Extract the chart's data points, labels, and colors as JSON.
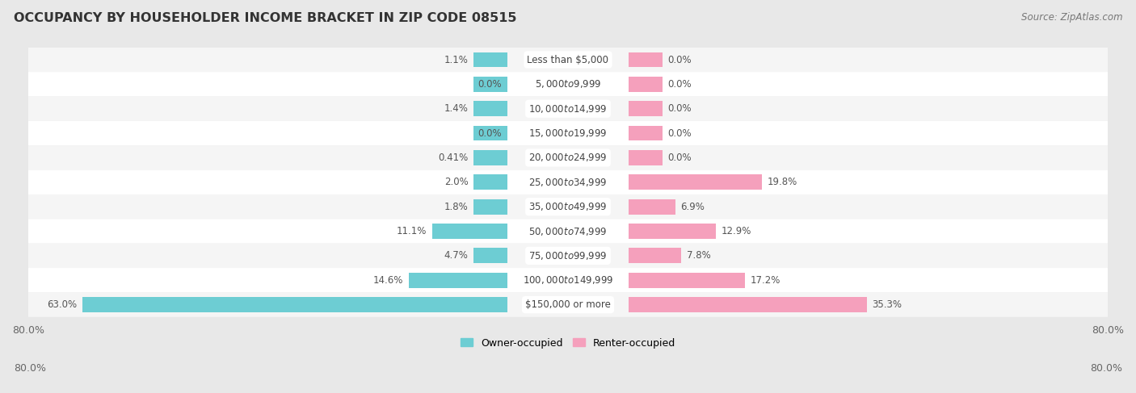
{
  "title": "OCCUPANCY BY HOUSEHOLDER INCOME BRACKET IN ZIP CODE 08515",
  "source": "Source: ZipAtlas.com",
  "categories": [
    "Less than $5,000",
    "$5,000 to $9,999",
    "$10,000 to $14,999",
    "$15,000 to $19,999",
    "$20,000 to $24,999",
    "$25,000 to $34,999",
    "$35,000 to $49,999",
    "$50,000 to $74,999",
    "$75,000 to $99,999",
    "$100,000 to $149,999",
    "$150,000 or more"
  ],
  "owner_values": [
    1.1,
    0.0,
    1.4,
    0.0,
    0.41,
    2.0,
    1.8,
    11.1,
    4.7,
    14.6,
    63.0
  ],
  "renter_values": [
    0.0,
    0.0,
    0.0,
    0.0,
    0.0,
    19.8,
    6.9,
    12.9,
    7.8,
    17.2,
    35.3
  ],
  "owner_color": "#6dcdd3",
  "renter_color": "#f5a0bc",
  "bg_color": "#e8e8e8",
  "row_bg_even": "#f5f5f5",
  "row_bg_odd": "#ffffff",
  "axis_max": 80.0,
  "min_bar_width": 5.0,
  "bar_height": 0.62,
  "title_fontsize": 11.5,
  "label_fontsize": 8.5,
  "category_fontsize": 8.5,
  "source_fontsize": 8.5,
  "legend_fontsize": 9,
  "axis_label_fontsize": 9
}
